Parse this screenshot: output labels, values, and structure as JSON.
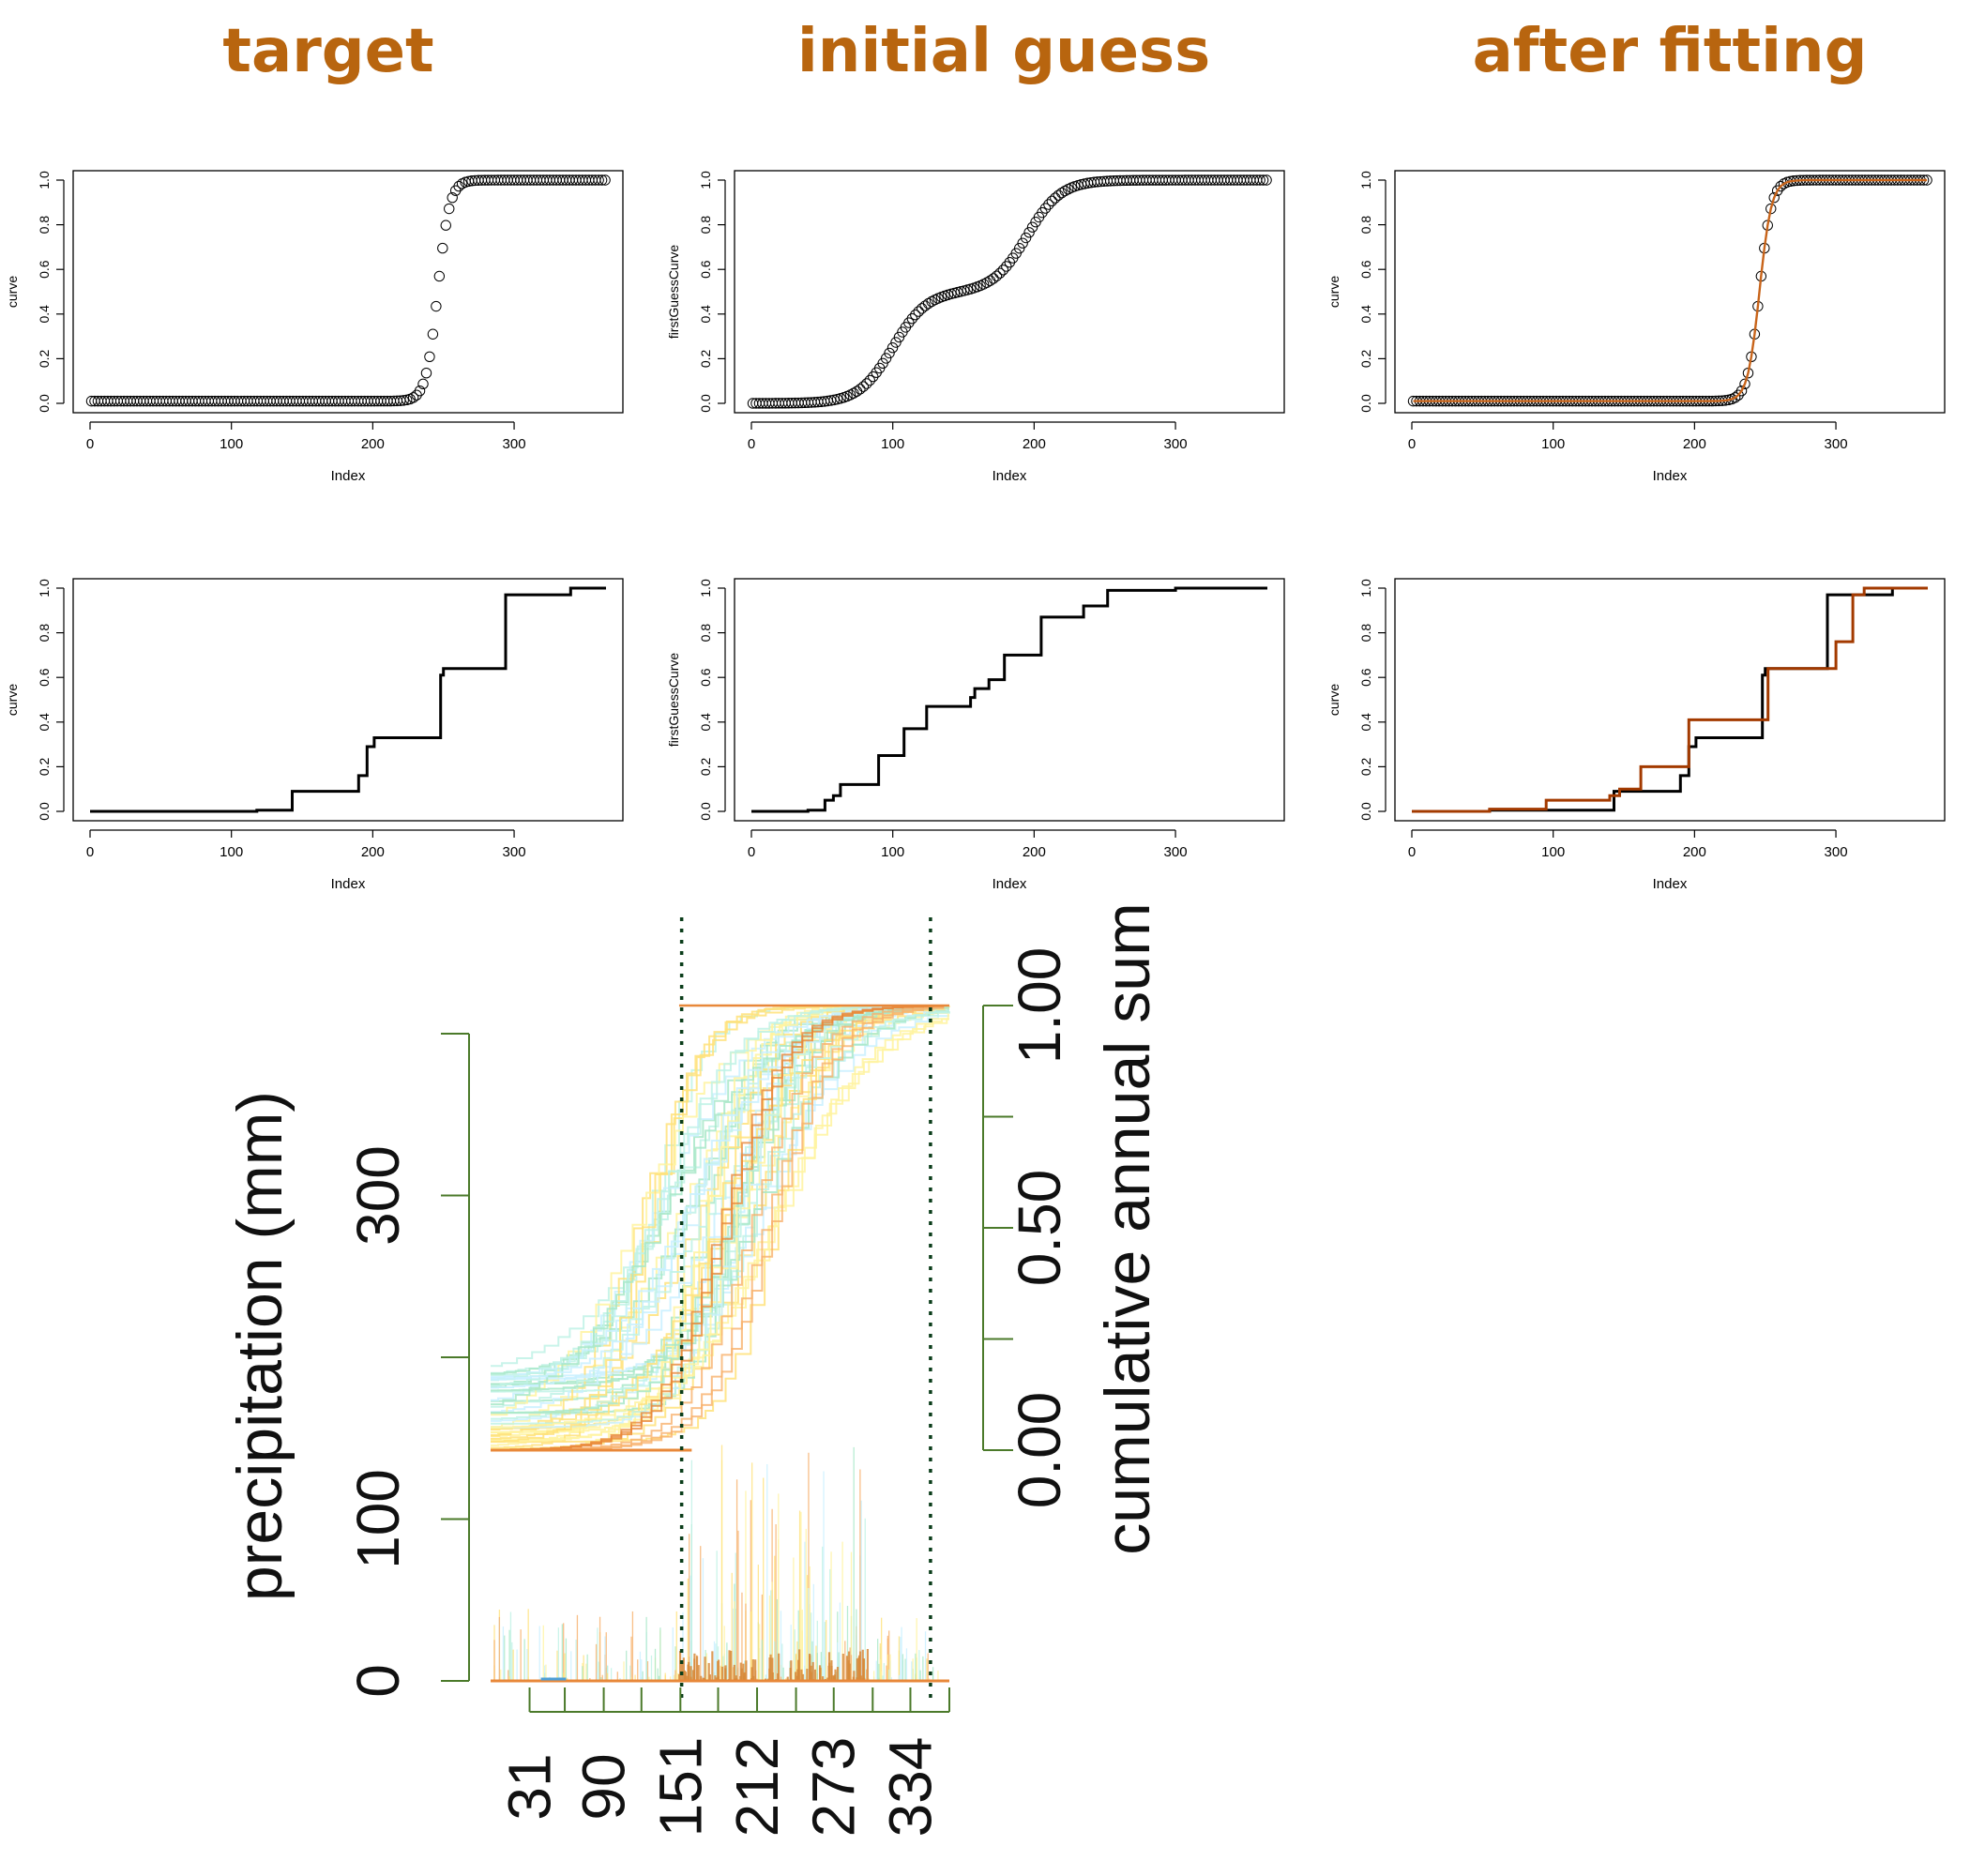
{
  "titles": [
    "target",
    "initial guess",
    "after fitting"
  ],
  "chart_data": [
    {
      "id": "target-points",
      "type": "scatter",
      "ylabel": "curve",
      "xlabel": "Index",
      "xlim": [
        0,
        365
      ],
      "ylim": [
        0,
        1
      ],
      "xticks": [
        "0",
        "100",
        "200",
        "300"
      ],
      "yticks": [
        "0.0",
        "0.2",
        "0.4",
        "0.6",
        "0.8",
        "1.0"
      ],
      "curve": {
        "type": "logistic",
        "midpoint": 246,
        "scale": 4.2,
        "base": 0.01
      },
      "series": [
        {
          "color": "#000000",
          "style": "circles"
        }
      ]
    },
    {
      "id": "guess-points",
      "type": "scatter",
      "ylabel": "firstGuessCurve",
      "xlabel": "Index",
      "xlim": [
        0,
        365
      ],
      "ylim": [
        0,
        1
      ],
      "xticks": [
        "0",
        "100",
        "200",
        "300"
      ],
      "yticks": [
        "0.0",
        "0.2",
        "0.4",
        "0.6",
        "0.8",
        "1.0"
      ],
      "curve": {
        "type": "double-logistic",
        "midpoints": [
          100,
          195
        ],
        "scale": 12,
        "weights": [
          0.5,
          0.5
        ]
      },
      "series": [
        {
          "color": "#000000",
          "style": "circles"
        }
      ]
    },
    {
      "id": "fit-points",
      "type": "scatter",
      "ylabel": "curve",
      "xlabel": "Index",
      "xlim": [
        0,
        365
      ],
      "ylim": [
        0,
        1
      ],
      "xticks": [
        "0",
        "100",
        "200",
        "300"
      ],
      "yticks": [
        "0.0",
        "0.2",
        "0.4",
        "0.6",
        "0.8",
        "1.0"
      ],
      "curve": {
        "type": "logistic",
        "midpoint": 246,
        "scale": 4.2,
        "base": 0.01
      },
      "series": [
        {
          "color": "#000000",
          "style": "circles"
        },
        {
          "color": "#c8641a",
          "style": "line"
        }
      ]
    },
    {
      "id": "target-steps",
      "type": "line",
      "ylabel": "curve",
      "xlabel": "Index",
      "xlim": [
        0,
        365
      ],
      "ylim": [
        0,
        1
      ],
      "xticks": [
        "0",
        "100",
        "200",
        "300"
      ],
      "yticks": [
        "0.0",
        "0.2",
        "0.4",
        "0.6",
        "0.8",
        "1.0"
      ],
      "series": [
        {
          "color": "#000000",
          "steps": [
            [
              0,
              0
            ],
            [
              118,
              0.005
            ],
            [
              143,
              0.09
            ],
            [
              190,
              0.16
            ],
            [
              196,
              0.29
            ],
            [
              201,
              0.33
            ],
            [
              248,
              0.61
            ],
            [
              250,
              0.64
            ],
            [
              294,
              0.97
            ],
            [
              340,
              1.0
            ],
            [
              365,
              1.0
            ]
          ]
        }
      ]
    },
    {
      "id": "guess-steps",
      "type": "line",
      "ylabel": "firstGuessCurve",
      "xlabel": "Index",
      "xlim": [
        0,
        365
      ],
      "ylim": [
        0,
        1
      ],
      "xticks": [
        "0",
        "100",
        "200",
        "300"
      ],
      "yticks": [
        "0.0",
        "0.2",
        "0.4",
        "0.6",
        "0.8",
        "1.0"
      ],
      "series": [
        {
          "color": "#000000",
          "steps": [
            [
              0,
              0
            ],
            [
              40,
              0.005
            ],
            [
              52,
              0.05
            ],
            [
              58,
              0.07
            ],
            [
              63,
              0.12
            ],
            [
              90,
              0.25
            ],
            [
              108,
              0.37
            ],
            [
              124,
              0.47
            ],
            [
              155,
              0.51
            ],
            [
              158,
              0.55
            ],
            [
              168,
              0.59
            ],
            [
              179,
              0.7
            ],
            [
              205,
              0.87
            ],
            [
              235,
              0.92
            ],
            [
              252,
              0.99
            ],
            [
              300,
              1.0
            ],
            [
              365,
              1.0
            ]
          ]
        }
      ]
    },
    {
      "id": "fit-steps",
      "type": "line",
      "ylabel": "curve",
      "xlabel": "Index",
      "xlim": [
        0,
        365
      ],
      "ylim": [
        0,
        1
      ],
      "xticks": [
        "0",
        "100",
        "200",
        "300"
      ],
      "yticks": [
        "0.0",
        "0.2",
        "0.4",
        "0.6",
        "0.8",
        "1.0"
      ],
      "series": [
        {
          "color": "#000000",
          "steps": [
            [
              0,
              0
            ],
            [
              55,
              0.005
            ],
            [
              143,
              0.09
            ],
            [
              190,
              0.16
            ],
            [
              196,
              0.29
            ],
            [
              201,
              0.33
            ],
            [
              248,
              0.61
            ],
            [
              250,
              0.64
            ],
            [
              294,
              0.97
            ],
            [
              340,
              1.0
            ],
            [
              365,
              1.0
            ]
          ]
        },
        {
          "color": "#a33a00",
          "steps": [
            [
              0,
              0
            ],
            [
              55,
              0.01
            ],
            [
              95,
              0.05
            ],
            [
              140,
              0.07
            ],
            [
              147,
              0.1
            ],
            [
              162,
              0.2
            ],
            [
              196,
              0.41
            ],
            [
              252,
              0.64
            ],
            [
              300,
              0.76
            ],
            [
              312,
              0.97
            ],
            [
              320,
              1.0
            ],
            [
              365,
              1.0
            ]
          ]
        }
      ]
    },
    {
      "id": "precipitation",
      "type": "line",
      "xlabel": "",
      "ylabel": "precipitation (mm)",
      "ylabel_right": "cumulative annual sum",
      "xlim": [
        0,
        365
      ],
      "ylim": [
        0,
        400
      ],
      "ylim_right": [
        0,
        1
      ],
      "xticks": [
        "31",
        "90",
        "151",
        "212",
        "273",
        "334"
      ],
      "yticks": [
        "0",
        "100",
        "300"
      ],
      "yticks_right": [
        "0.00",
        "0.50",
        "1.00"
      ],
      "vlines": [
        152,
        350
      ],
      "palette": [
        "#fff3a0",
        "#ffe27a",
        "#bff2e6",
        "#a8e8c8",
        "#c9f0ff",
        "#f7b06b",
        "#e8883a",
        "#4f9fd6"
      ]
    }
  ]
}
